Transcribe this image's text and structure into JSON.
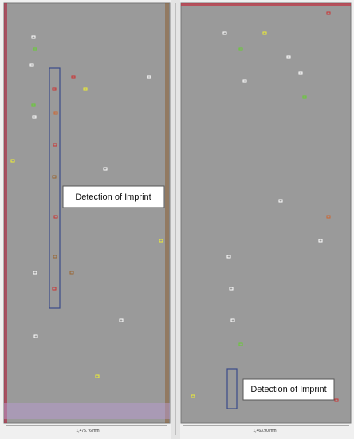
{
  "panels": [
    {
      "label": "Detection of Imprint",
      "scale": "1,475.76 mm"
    },
    {
      "label": "Detection of Imprint",
      "scale": "1,463.90 mm"
    }
  ]
}
